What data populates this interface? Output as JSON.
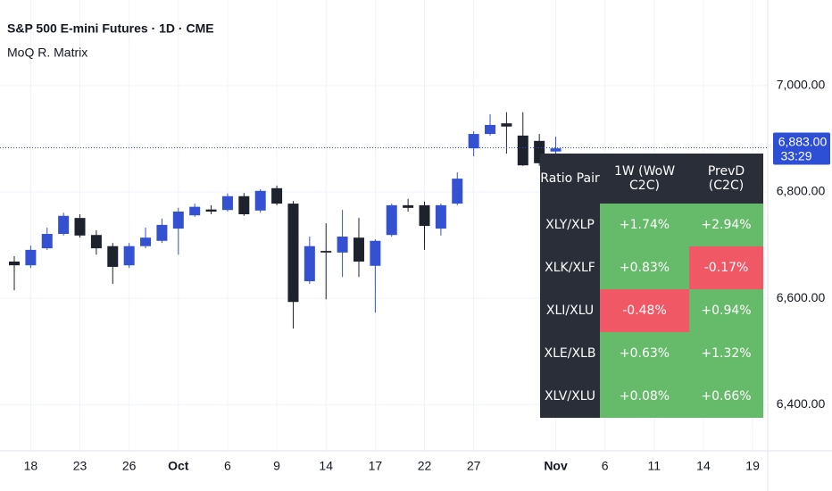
{
  "chart_data": {
    "type": "candlestick",
    "title": "S&P 500 E-mini Futures · 1D · CME",
    "subtitle": "MoQ R. Matrix",
    "categories": [
      null,
      "18",
      null,
      null,
      "23",
      null,
      null,
      "26",
      null,
      null,
      "Oct",
      null,
      null,
      "6",
      null,
      null,
      "9",
      null,
      null,
      "14",
      null,
      null,
      "17",
      null,
      null,
      "22",
      null,
      null,
      "27",
      null,
      null,
      null,
      null,
      "Nov",
      null,
      null,
      "6",
      null,
      null,
      "11",
      null,
      null,
      "14",
      null,
      null,
      "19"
    ],
    "bold_categories": [
      "Oct",
      "Nov"
    ],
    "open": [
      6669,
      6662,
      6694,
      6721,
      6751,
      6719,
      6698,
      6662,
      6698,
      6708,
      6731,
      6756,
      6767,
      6766,
      6792,
      6765,
      6807,
      6778,
      6632,
      6689,
      6686,
      6714,
      6661,
      6719,
      6775,
      6775,
      6731,
      6778,
      6882,
      6909,
      6929,
      6906,
      6896,
      6876,
      null,
      null,
      null,
      null,
      null,
      null,
      null,
      null,
      null,
      null,
      null,
      null
    ],
    "high": [
      6679,
      6699,
      6733,
      6761,
      6758,
      6728,
      6704,
      6704,
      6733,
      6750,
      6770,
      6778,
      6775,
      6797,
      6798,
      6805,
      6812,
      6783,
      6716,
      6741,
      6766,
      6751,
      6711,
      6778,
      6787,
      6782,
      6778,
      6837,
      6914,
      6946,
      6950,
      6950,
      6909,
      6904,
      null,
      null,
      null,
      null,
      null,
      null,
      null,
      null,
      null,
      null,
      null,
      null
    ],
    "low": [
      6615,
      6657,
      6691,
      6718,
      6714,
      6682,
      6627,
      6657,
      6694,
      6704,
      6682,
      6753,
      6758,
      6763,
      6755,
      6761,
      6775,
      6543,
      6627,
      6598,
      6640,
      6640,
      6573,
      6716,
      6763,
      6691,
      6718,
      6775,
      6867,
      6906,
      6872,
      6849,
      6849,
      6872,
      null,
      null,
      null,
      null,
      null,
      null,
      null,
      null,
      null,
      null,
      null,
      null
    ],
    "close": [
      6662,
      6691,
      6721,
      6755,
      6718,
      6694,
      6659,
      6698,
      6714,
      6738,
      6763,
      6772,
      6763,
      6792,
      6758,
      6802,
      6778,
      6593,
      6698,
      6686,
      6716,
      6669,
      6708,
      6775,
      6770,
      6736,
      6775,
      6825,
      6909,
      6926,
      6923,
      6850,
      6854,
      6882,
      null,
      null,
      null,
      null,
      null,
      null,
      null,
      null,
      null,
      null,
      null,
      null
    ],
    "up_color": "#3451d1",
    "down_color": "#1e222d",
    "ylim": [
      6313,
      7161
    ],
    "yticks": [
      {
        "value": 6400,
        "label": "6,400.00"
      },
      {
        "value": 6600,
        "label": "6,600.00"
      },
      {
        "value": 6800,
        "label": "6,800.00"
      },
      {
        "value": 7000,
        "label": "7,000.00"
      }
    ],
    "grid": true,
    "last_price": {
      "value": 6883,
      "label": "6,883.00"
    },
    "countdown": "33:29",
    "last_price_color": "#2d4fd6"
  },
  "table": {
    "header": [
      "Ratio Pair",
      "1W (WoW C2C)",
      "PrevD (C2C)"
    ],
    "rows": [
      [
        "XLY/XLP",
        "+1.74%",
        "+2.94%"
      ],
      [
        "XLK/XLF",
        "+0.83%",
        "-0.17%"
      ],
      [
        "XLI/XLU",
        "-0.48%",
        "+0.94%"
      ],
      [
        "XLE/XLB",
        "+0.63%",
        "+1.32%"
      ],
      [
        "XLV/XLU",
        "+0.08%",
        "+0.66%"
      ]
    ],
    "positive_color": "#66bb6a",
    "negative_color": "#f05866",
    "label_color": "#2a2e39"
  }
}
